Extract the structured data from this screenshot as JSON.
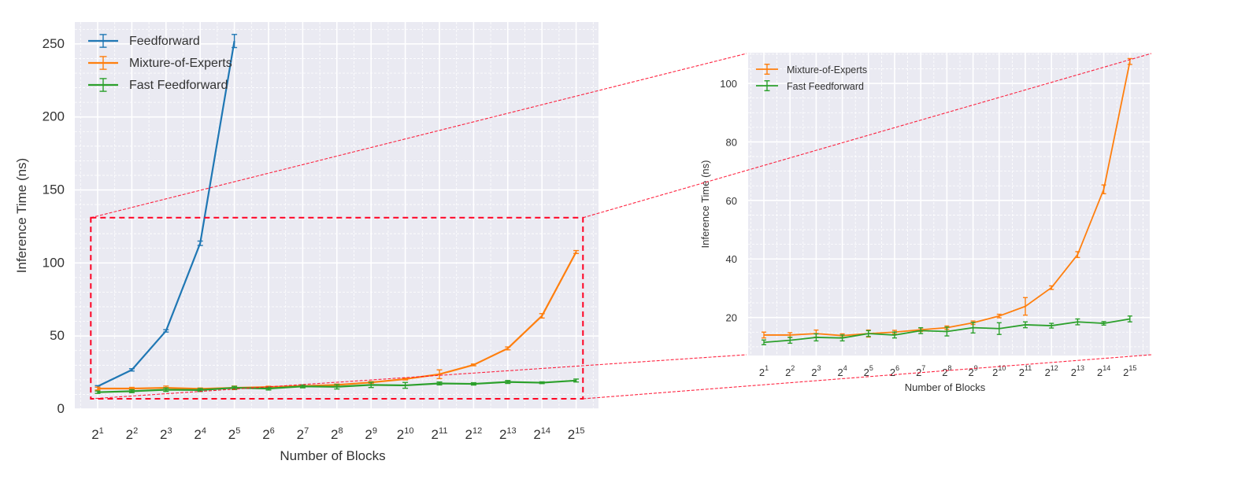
{
  "chart_data": [
    {
      "type": "line",
      "title": "",
      "xlabel": "Number of Blocks",
      "ylabel": "Inference Time (ns)",
      "x_tick_base": "2",
      "x_exponents": [
        "1",
        "2",
        "3",
        "4",
        "5",
        "6",
        "7",
        "8",
        "9",
        "10",
        "11",
        "12",
        "13",
        "14",
        "15"
      ],
      "ylim": [
        0,
        265
      ],
      "yticks": [
        "0",
        "50",
        "100",
        "150",
        "200",
        "250"
      ],
      "grid": true,
      "legend_position": "top-left",
      "series": [
        {
          "name": "Feedforward",
          "color": "#1f77b4",
          "values": [
            15.5,
            26.8,
            53.5,
            113.5,
            252.0
          ],
          "errors": [
            0.5,
            0.8,
            0.8,
            1.5,
            4.5
          ]
        },
        {
          "name": "Mixture-of-Experts",
          "color": "#ff7f0e",
          "values": [
            14.0,
            14.0,
            14.5,
            13.8,
            14.5,
            15.0,
            15.8,
            16.5,
            18.2,
            20.5,
            23.8,
            30.2,
            41.5,
            63.8,
            107.5
          ],
          "errors": [
            1.0,
            0.8,
            1.2,
            0.6,
            1.2,
            0.6,
            0.6,
            0.6,
            0.6,
            0.6,
            3.0,
            0.6,
            1.0,
            1.5,
            1.0
          ]
        },
        {
          "name": "Fast Feedforward",
          "color": "#2ca02c",
          "values": [
            11.5,
            12.2,
            13.2,
            13.0,
            14.5,
            14.0,
            15.5,
            15.2,
            16.5,
            16.2,
            17.5,
            17.2,
            18.5,
            18.0,
            19.5
          ],
          "errors": [
            0.8,
            1.0,
            1.2,
            1.0,
            1.0,
            1.0,
            1.0,
            1.5,
            1.8,
            2.0,
            1.0,
            0.8,
            1.0,
            0.6,
            1.0
          ]
        }
      ]
    },
    {
      "type": "line",
      "title": "",
      "xlabel": "Number of Blocks",
      "ylabel": "Inference Time (ns)",
      "x_tick_base": "2",
      "x_exponents": [
        "1",
        "2",
        "3",
        "4",
        "5",
        "6",
        "7",
        "8",
        "9",
        "10",
        "11",
        "12",
        "13",
        "14",
        "15"
      ],
      "ylim": [
        7,
        110.5
      ],
      "yticks": [
        "20",
        "40",
        "60",
        "80",
        "100"
      ],
      "grid": true,
      "legend_position": "top-left",
      "series": [
        {
          "name": "Mixture-of-Experts",
          "color": "#ff7f0e",
          "values": [
            14.0,
            14.0,
            14.5,
            13.8,
            14.5,
            15.0,
            15.8,
            16.5,
            18.2,
            20.5,
            23.8,
            30.2,
            41.5,
            63.8,
            107.5
          ],
          "errors": [
            1.0,
            0.8,
            1.2,
            0.6,
            1.2,
            0.6,
            0.6,
            0.6,
            0.6,
            0.6,
            3.0,
            0.6,
            1.0,
            1.5,
            1.0
          ]
        },
        {
          "name": "Fast Feedforward",
          "color": "#2ca02c",
          "values": [
            11.5,
            12.2,
            13.2,
            13.0,
            14.5,
            14.0,
            15.5,
            15.2,
            16.5,
            16.2,
            17.5,
            17.2,
            18.5,
            18.0,
            19.5
          ],
          "errors": [
            0.8,
            1.0,
            1.2,
            1.0,
            1.0,
            1.0,
            1.0,
            1.5,
            1.8,
            2.0,
            1.0,
            0.8,
            1.0,
            0.6,
            1.0
          ]
        }
      ]
    }
  ],
  "zoom_region": {
    "x_range_exponents": [
      0.8,
      15.2
    ],
    "y_range": [
      7,
      131
    ],
    "color": "#ff0022"
  }
}
